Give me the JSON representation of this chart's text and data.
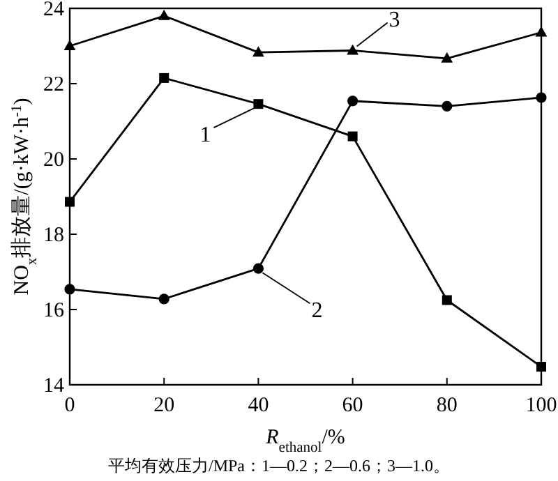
{
  "chart_data": {
    "type": "line",
    "xlabel": "*R*$_{ethanol}$/%",
    "ylabel": "NO$_{x}$排放量/(g·kW·h$^{-1}$)",
    "x": [
      0,
      20,
      40,
      60,
      80,
      100
    ],
    "series": [
      {
        "name": "1",
        "color": "#000000",
        "marker": "square",
        "values": [
          18.86,
          22.15,
          21.46,
          20.6,
          16.25,
          14.48
        ]
      },
      {
        "name": "2",
        "color": "#000000",
        "marker": "circle",
        "values": [
          16.54,
          16.28,
          17.09,
          21.54,
          21.4,
          21.63
        ]
      },
      {
        "name": "3",
        "color": "#000000",
        "marker": "triangle",
        "values": [
          23.0,
          23.8,
          22.83,
          22.88,
          22.67,
          23.36
        ]
      }
    ],
    "xlim": [
      0,
      100
    ],
    "ylim": [
      14,
      24
    ],
    "xticks": [
      0,
      20,
      40,
      60,
      80,
      100
    ],
    "yticks": [
      14,
      16,
      18,
      20,
      22,
      24
    ],
    "annotations": [
      "平均有效压力/MPa：1—0.2；2—0.6；3—1.0。"
    ]
  }
}
